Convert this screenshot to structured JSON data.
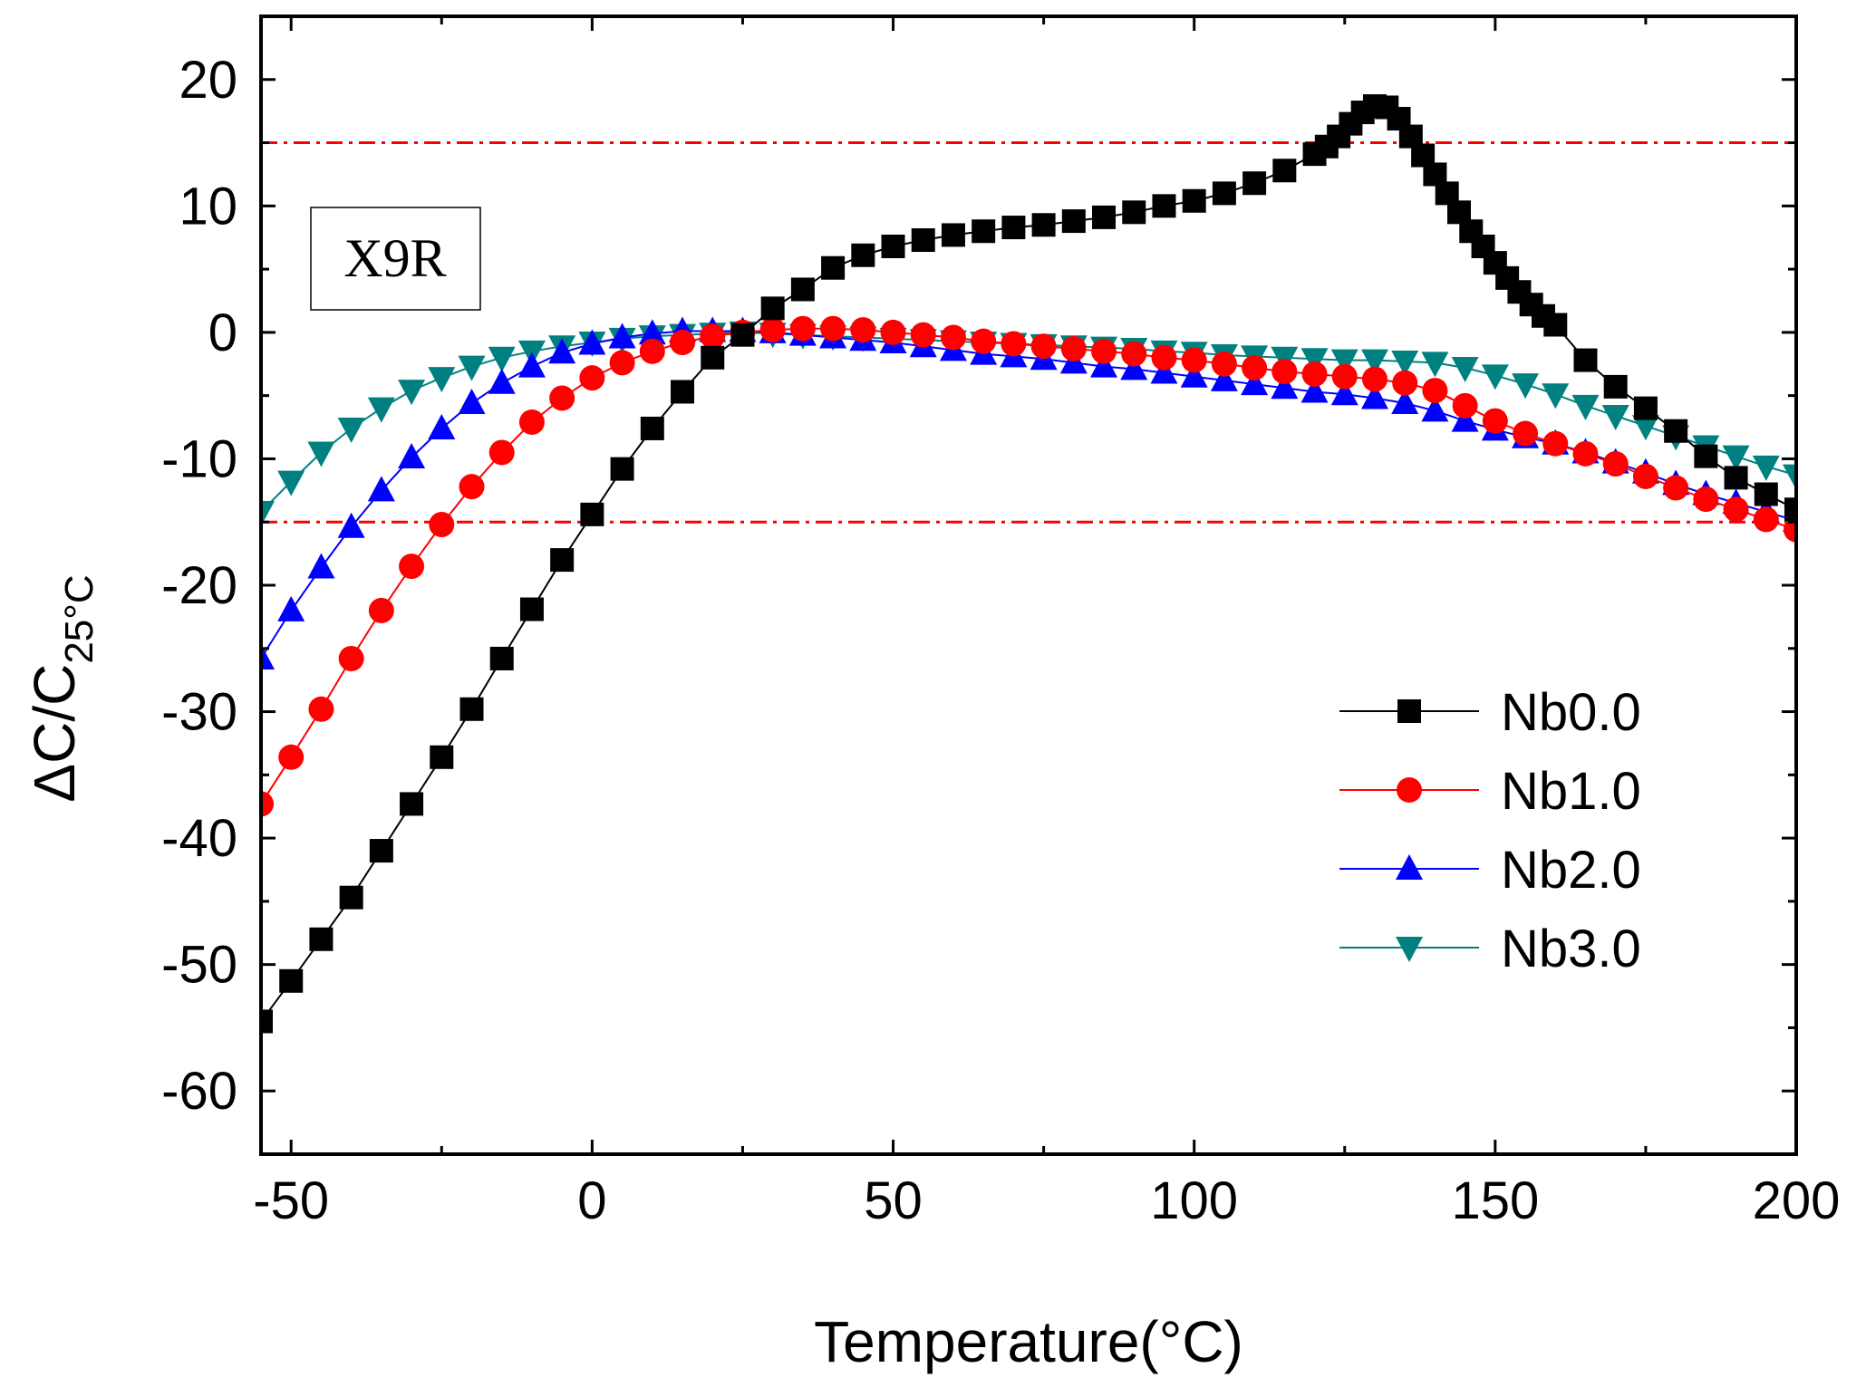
{
  "chart_data": {
    "type": "line",
    "title": "",
    "xlabel": "Temperature(°C)",
    "ylabel_main": "ΔC/C",
    "ylabel_sub": "25°C",
    "xlim": [
      -55,
      200
    ],
    "ylim": [
      -65,
      25
    ],
    "x_ticks": [
      -50,
      0,
      50,
      100,
      150,
      200
    ],
    "x_tick_labels": [
      "-50",
      "0",
      "50",
      "100",
      "150",
      "200"
    ],
    "y_ticks": [
      20,
      10,
      0,
      -10,
      -20,
      -30,
      -40,
      -50,
      -60
    ],
    "y_tick_labels": [
      "20",
      "10",
      "0",
      "-10",
      "-20",
      "-30",
      "-40",
      "-50",
      "-60"
    ],
    "annotation": "X9R",
    "limit_lines": [
      15,
      -15
    ],
    "limit_color": "#ff0000",
    "legend_position": "lower-right",
    "series": [
      {
        "name": "Nb0.0",
        "marker": "square",
        "color": "#000000",
        "points": [
          [
            -55,
            -54.5
          ],
          [
            -50,
            -51.3
          ],
          [
            -45,
            -48
          ],
          [
            -40,
            -44.7
          ],
          [
            -35,
            -41
          ],
          [
            -30,
            -37.3
          ],
          [
            -25,
            -33.6
          ],
          [
            -20,
            -29.8
          ],
          [
            -15,
            -25.8
          ],
          [
            -10,
            -21.9
          ],
          [
            -5,
            -18
          ],
          [
            0,
            -14.4
          ],
          [
            5,
            -10.8
          ],
          [
            10,
            -7.6
          ],
          [
            15,
            -4.7
          ],
          [
            20,
            -2
          ],
          [
            25,
            -0.2
          ],
          [
            30,
            1.9
          ],
          [
            35,
            3.4
          ],
          [
            40,
            5.1
          ],
          [
            45,
            6.1
          ],
          [
            50,
            6.8
          ],
          [
            55,
            7.3
          ],
          [
            60,
            7.7
          ],
          [
            65,
            8
          ],
          [
            70,
            8.3
          ],
          [
            75,
            8.5
          ],
          [
            80,
            8.8
          ],
          [
            85,
            9.1
          ],
          [
            90,
            9.5
          ],
          [
            95,
            10
          ],
          [
            100,
            10.4
          ],
          [
            105,
            11
          ],
          [
            110,
            11.8
          ],
          [
            115,
            12.8
          ],
          [
            120,
            14.1
          ],
          [
            122,
            14.7
          ],
          [
            124,
            15.5
          ],
          [
            126,
            16.5
          ],
          [
            128,
            17.4
          ],
          [
            130,
            17.9
          ],
          [
            132,
            17.8
          ],
          [
            134,
            16.9
          ],
          [
            136,
            15.5
          ],
          [
            138,
            14
          ],
          [
            140,
            12.5
          ],
          [
            142,
            11
          ],
          [
            144,
            9.5
          ],
          [
            146,
            8
          ],
          [
            148,
            6.8
          ],
          [
            150,
            5.5
          ],
          [
            152,
            4.3
          ],
          [
            154,
            3.2
          ],
          [
            156,
            2.2
          ],
          [
            158,
            1.3
          ],
          [
            160,
            0.6
          ],
          [
            165,
            -2.2
          ],
          [
            170,
            -4.3
          ],
          [
            175,
            -6
          ],
          [
            180,
            -7.8
          ],
          [
            185,
            -9.8
          ],
          [
            190,
            -11.5
          ],
          [
            195,
            -12.8
          ],
          [
            200,
            -14
          ]
        ]
      },
      {
        "name": "Nb1.0",
        "marker": "circle",
        "color": "#ff0000",
        "points": [
          [
            -55,
            -37.3
          ],
          [
            -50,
            -33.6
          ],
          [
            -45,
            -29.8
          ],
          [
            -40,
            -25.8
          ],
          [
            -35,
            -22
          ],
          [
            -30,
            -18.5
          ],
          [
            -25,
            -15.2
          ],
          [
            -20,
            -12.2
          ],
          [
            -15,
            -9.5
          ],
          [
            -10,
            -7.1
          ],
          [
            -5,
            -5.2
          ],
          [
            0,
            -3.6
          ],
          [
            5,
            -2.4
          ],
          [
            10,
            -1.5
          ],
          [
            15,
            -0.8
          ],
          [
            20,
            -0.3
          ],
          [
            25,
            0
          ],
          [
            30,
            0.2
          ],
          [
            35,
            0.3
          ],
          [
            40,
            0.3
          ],
          [
            45,
            0.2
          ],
          [
            50,
            0
          ],
          [
            55,
            -0.2
          ],
          [
            60,
            -0.4
          ],
          [
            65,
            -0.7
          ],
          [
            70,
            -0.9
          ],
          [
            75,
            -1.1
          ],
          [
            80,
            -1.3
          ],
          [
            85,
            -1.5
          ],
          [
            90,
            -1.7
          ],
          [
            95,
            -2
          ],
          [
            100,
            -2.2
          ],
          [
            105,
            -2.5
          ],
          [
            110,
            -2.8
          ],
          [
            115,
            -3.1
          ],
          [
            120,
            -3.3
          ],
          [
            125,
            -3.5
          ],
          [
            130,
            -3.7
          ],
          [
            135,
            -4
          ],
          [
            140,
            -4.6
          ],
          [
            145,
            -5.8
          ],
          [
            150,
            -7
          ],
          [
            155,
            -8
          ],
          [
            160,
            -8.8
          ],
          [
            165,
            -9.6
          ],
          [
            170,
            -10.4
          ],
          [
            175,
            -11.4
          ],
          [
            180,
            -12.3
          ],
          [
            185,
            -13.2
          ],
          [
            190,
            -14
          ],
          [
            195,
            -14.8
          ],
          [
            200,
            -15.6
          ]
        ]
      },
      {
        "name": "Nb2.0",
        "marker": "triangle-up",
        "color": "#0000ff",
        "points": [
          [
            -55,
            -25.8
          ],
          [
            -50,
            -22
          ],
          [
            -45,
            -18.6
          ],
          [
            -40,
            -15.4
          ],
          [
            -35,
            -12.5
          ],
          [
            -30,
            -9.9
          ],
          [
            -25,
            -7.6
          ],
          [
            -20,
            -5.6
          ],
          [
            -15,
            -4
          ],
          [
            -10,
            -2.7
          ],
          [
            -5,
            -1.6
          ],
          [
            0,
            -0.9
          ],
          [
            5,
            -0.4
          ],
          [
            10,
            -0.1
          ],
          [
            15,
            0.1
          ],
          [
            20,
            0.1
          ],
          [
            25,
            0.1
          ],
          [
            30,
            0
          ],
          [
            35,
            -0.2
          ],
          [
            40,
            -0.4
          ],
          [
            45,
            -0.6
          ],
          [
            50,
            -0.8
          ],
          [
            55,
            -1.1
          ],
          [
            60,
            -1.4
          ],
          [
            65,
            -1.7
          ],
          [
            70,
            -1.9
          ],
          [
            75,
            -2.1
          ],
          [
            80,
            -2.4
          ],
          [
            85,
            -2.7
          ],
          [
            90,
            -2.9
          ],
          [
            95,
            -3.2
          ],
          [
            100,
            -3.5
          ],
          [
            105,
            -3.8
          ],
          [
            110,
            -4.1
          ],
          [
            115,
            -4.4
          ],
          [
            120,
            -4.7
          ],
          [
            125,
            -4.9
          ],
          [
            130,
            -5.2
          ],
          [
            135,
            -5.6
          ],
          [
            140,
            -6.2
          ],
          [
            145,
            -7
          ],
          [
            150,
            -7.7
          ],
          [
            155,
            -8.3
          ],
          [
            160,
            -8.8
          ],
          [
            165,
            -9.5
          ],
          [
            170,
            -10.3
          ],
          [
            175,
            -11.1
          ],
          [
            180,
            -12
          ],
          [
            185,
            -12.8
          ],
          [
            190,
            -13.5
          ],
          [
            195,
            -14.2
          ],
          [
            200,
            -14.9
          ]
        ]
      },
      {
        "name": "Nb3.0",
        "marker": "triangle-down",
        "color": "#008080",
        "points": [
          [
            -55,
            -14.2
          ],
          [
            -50,
            -11.8
          ],
          [
            -45,
            -9.5
          ],
          [
            -40,
            -7.6
          ],
          [
            -35,
            -6
          ],
          [
            -30,
            -4.6
          ],
          [
            -25,
            -3.6
          ],
          [
            -20,
            -2.7
          ],
          [
            -15,
            -2
          ],
          [
            -10,
            -1.5
          ],
          [
            -5,
            -1.1
          ],
          [
            0,
            -0.8
          ],
          [
            5,
            -0.5
          ],
          [
            10,
            -0.3
          ],
          [
            15,
            -0.2
          ],
          [
            20,
            -0.1
          ],
          [
            25,
            0
          ],
          [
            30,
            -0.1
          ],
          [
            35,
            -0.2
          ],
          [
            40,
            -0.3
          ],
          [
            45,
            -0.4
          ],
          [
            50,
            -0.5
          ],
          [
            55,
            -0.6
          ],
          [
            60,
            -0.7
          ],
          [
            65,
            -0.8
          ],
          [
            70,
            -0.9
          ],
          [
            75,
            -1
          ],
          [
            80,
            -1.1
          ],
          [
            85,
            -1.2
          ],
          [
            90,
            -1.3
          ],
          [
            95,
            -1.5
          ],
          [
            100,
            -1.6
          ],
          [
            105,
            -1.8
          ],
          [
            110,
            -1.9
          ],
          [
            115,
            -2
          ],
          [
            120,
            -2.1
          ],
          [
            125,
            -2.2
          ],
          [
            130,
            -2.2
          ],
          [
            135,
            -2.3
          ],
          [
            140,
            -2.4
          ],
          [
            145,
            -2.8
          ],
          [
            150,
            -3.4
          ],
          [
            155,
            -4.1
          ],
          [
            160,
            -4.9
          ],
          [
            165,
            -5.8
          ],
          [
            170,
            -6.6
          ],
          [
            175,
            -7.4
          ],
          [
            180,
            -8.2
          ],
          [
            185,
            -9
          ],
          [
            190,
            -9.8
          ],
          [
            195,
            -10.6
          ],
          [
            200,
            -11.3
          ]
        ]
      }
    ]
  }
}
